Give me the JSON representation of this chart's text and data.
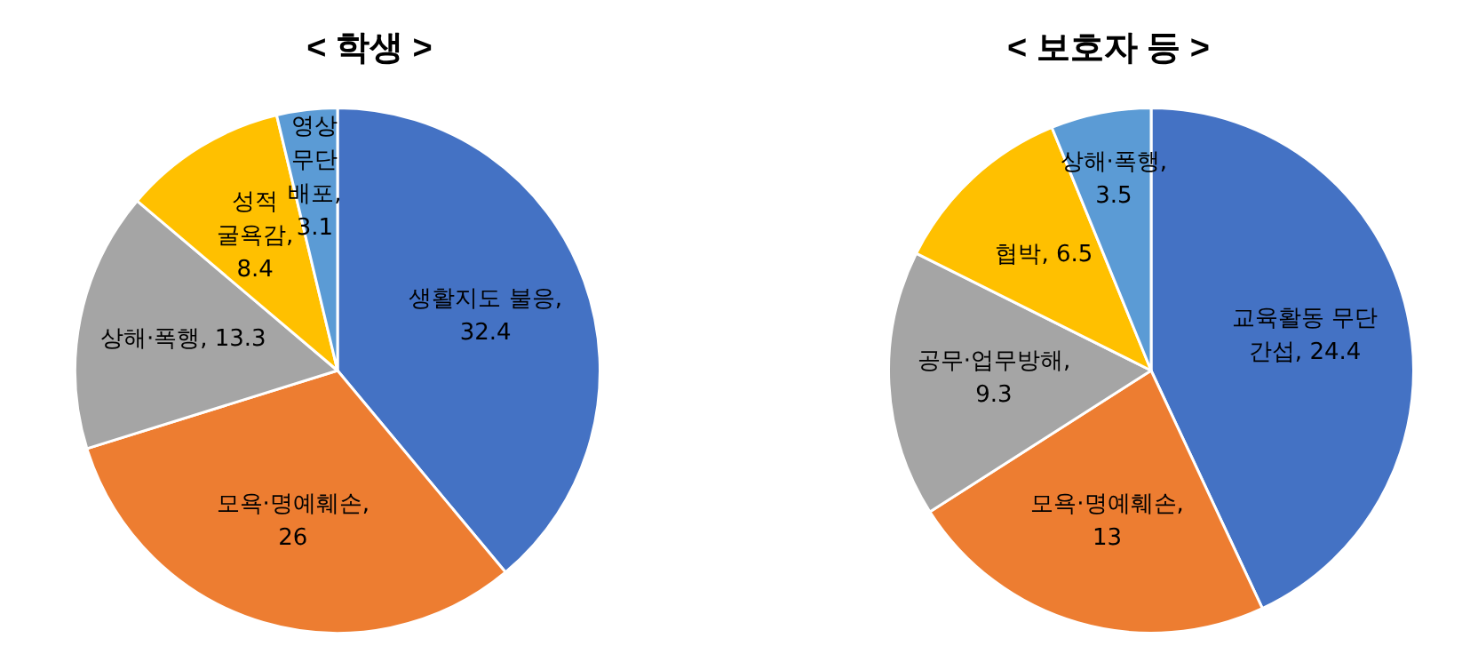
{
  "chart_data": [
    {
      "type": "pie",
      "title": "< 학생 >",
      "categories": [
        "생활지도 불응",
        "모욕·명예훼손",
        "상해·폭행",
        "성적 굴욕감",
        "영상 무단 배포"
      ],
      "values": [
        32.4,
        26,
        13.3,
        8.4,
        3.1
      ],
      "colors": [
        "#4472c4",
        "#ed7d31",
        "#a5a5a5",
        "#ffc000",
        "#5b9bd5"
      ],
      "value_labels": [
        ", 32.4",
        ", 26",
        ", 13.3",
        ", 8.4",
        ", 3.1"
      ],
      "legend": false
    },
    {
      "type": "pie",
      "title": "< 보호자 등 >",
      "categories": [
        "교육활동 무단 간섭",
        "모욕·명예훼손",
        "공무·업무방해",
        "협박",
        "상해·폭행"
      ],
      "values": [
        24.4,
        13,
        9.3,
        6.5,
        3.5
      ],
      "colors": [
        "#4472c4",
        "#ed7d31",
        "#a5a5a5",
        "#ffc000",
        "#5b9bd5"
      ],
      "value_labels": [
        ", 24.4",
        ", 13",
        ", 9.3",
        ", 6.5",
        ", 3.5"
      ],
      "legend": false
    }
  ]
}
